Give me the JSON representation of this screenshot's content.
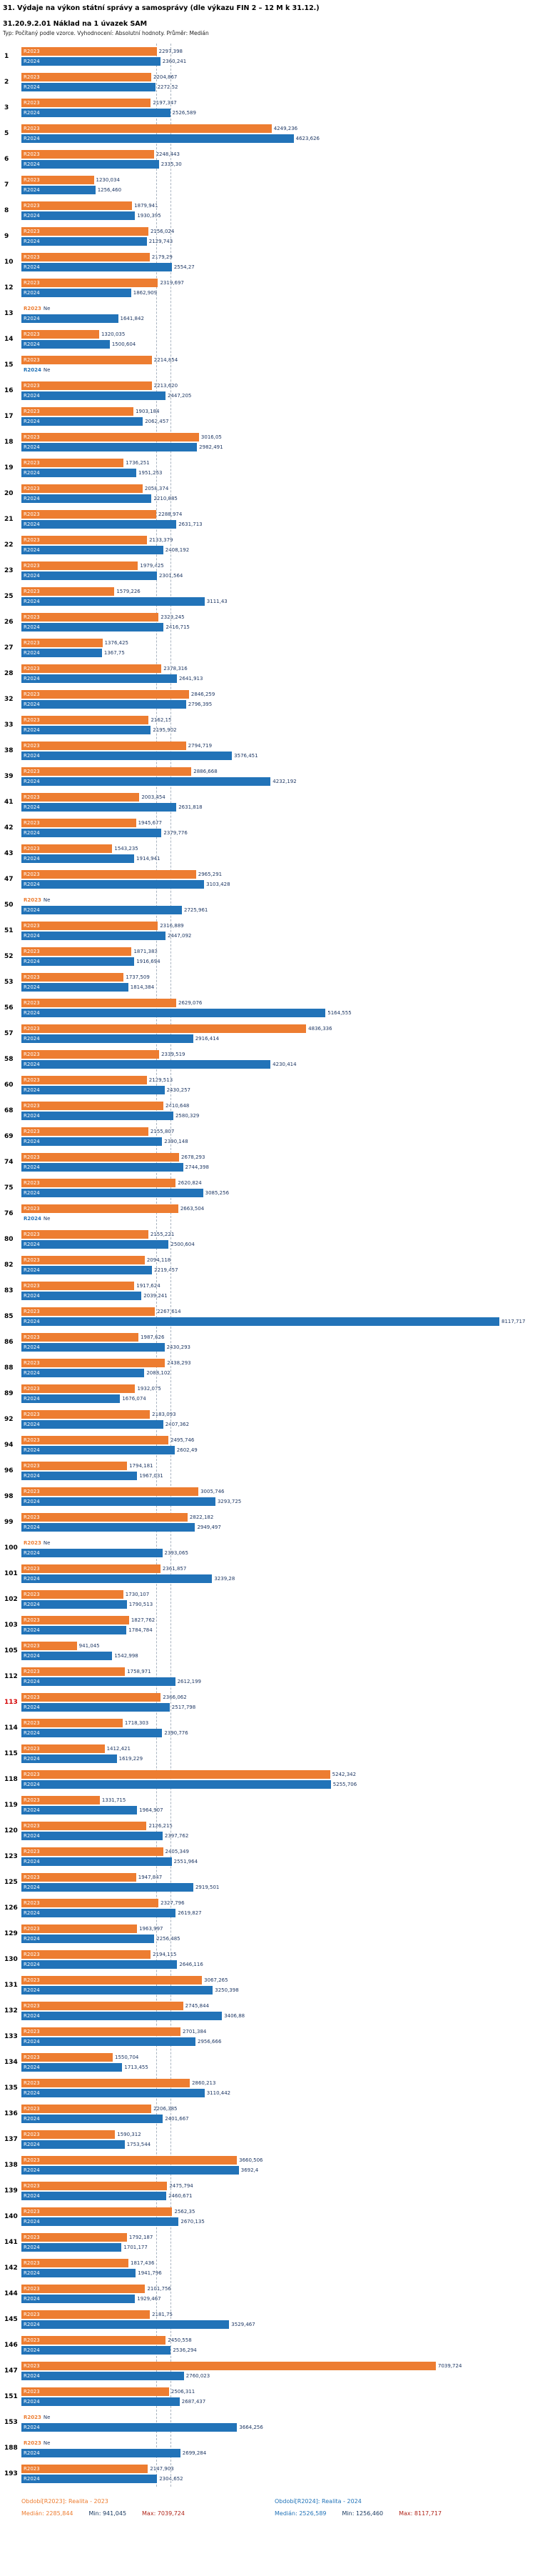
{
  "chart_data": {
    "type": "bar",
    "orientation": "horizontal",
    "title": "31. Výdaje na výkon státní správy a samosprávy (dle výkazu FIN 2 – 12 M k 31.12.)",
    "subtitle": "31.20.9.2.01 Náklad na 1 úvazek SAM",
    "meta": "Typ: Počítaný podle vzorce. Vyhodnocení: Absolutní hodnoty. Průměr: Medián",
    "series_names": [
      "R2023",
      "R2024"
    ],
    "colors": {
      "R2023": "#ed7d31",
      "R2024": "#2273b8"
    },
    "value_label_color": "#1f3864",
    "xmax": 8117.717,
    "grid": false,
    "legend_position": "bottom",
    "no_data_label": "Ne",
    "medians": {
      "R2023": 2285.844,
      "R2024": 2526.589
    },
    "highlighted_rows": [
      "113"
    ],
    "rows": [
      [
        "1",
        "2297,398",
        "2360,241"
      ],
      [
        "2",
        "2204,867",
        "2272,52"
      ],
      [
        "3",
        "2197,347",
        "2526,589"
      ],
      [
        "5",
        "4249,236",
        "4623,626"
      ],
      [
        "6",
        "2248,443",
        "2335,30"
      ],
      [
        "7",
        "1230,034",
        "1256,460"
      ],
      [
        "8",
        "1879,941",
        "1930,395"
      ],
      [
        "9",
        "2156,024",
        "2129,743"
      ],
      [
        "10",
        "2179,29",
        "2554,27"
      ],
      [
        "12",
        "2319,697",
        "1862,909"
      ],
      [
        "13",
        null,
        "1641,842"
      ],
      [
        "14",
        "1320,035",
        "1500,604"
      ],
      [
        "15",
        "2214,854",
        null
      ],
      [
        "16",
        "2213,620",
        "2447,205"
      ],
      [
        "17",
        "1903,184",
        "2062,457"
      ],
      [
        "18",
        "3016,05",
        "2982,491"
      ],
      [
        "19",
        "1736,251",
        "1951,263"
      ],
      [
        "20",
        "2058,374",
        "2210,885"
      ],
      [
        "21",
        "2288,974",
        "2631,713"
      ],
      [
        "22",
        "2133,379",
        "2408,192"
      ],
      [
        "23",
        "1979,425",
        "2301,564"
      ],
      [
        "25",
        "1579,226",
        "3111,43"
      ],
      [
        "26",
        "2329,245",
        "2416,715"
      ],
      [
        "27",
        "1376,425",
        "1367,75"
      ],
      [
        "28",
        "2378,316",
        "2641,913"
      ],
      [
        "32",
        "2846,259",
        "2796,395"
      ],
      [
        "33",
        "2162,15",
        "2195,902"
      ],
      [
        "38",
        "2794,719",
        "3576,451"
      ],
      [
        "39",
        "2886,668",
        "4232,192"
      ],
      [
        "41",
        "2003,454",
        "2631,818"
      ],
      [
        "42",
        "1945,677",
        "2379,776"
      ],
      [
        "43",
        "1543,235",
        "1914,941"
      ],
      [
        "47",
        "2965,291",
        "3103,428"
      ],
      [
        "50",
        null,
        "2725,961"
      ],
      [
        "51",
        "2316,889",
        "2447,092"
      ],
      [
        "52",
        "1871,383",
        "1916,694"
      ],
      [
        "53",
        "1737,509",
        "1814,384"
      ],
      [
        "56",
        "2629,076",
        "5164,555"
      ],
      [
        "57",
        "4836,336",
        "2916,414"
      ],
      [
        "58",
        "2339,519",
        "4230,414"
      ],
      [
        "60",
        "2129,513",
        "2430,257"
      ],
      [
        "68",
        "2410,648",
        "2580,329"
      ],
      [
        "69",
        "2155,807",
        "2390,148"
      ],
      [
        "74",
        "2678,293",
        "2744,398"
      ],
      [
        "75",
        "2620,824",
        "3085,256"
      ],
      [
        "76",
        "2663,504",
        null
      ],
      [
        "80",
        "2155,221",
        "2500,604"
      ],
      [
        "82",
        "2094,118",
        "2219,457"
      ],
      [
        "83",
        "1917,624",
        "2039,241"
      ],
      [
        "85",
        "2267,614",
        "8117,717"
      ],
      [
        "86",
        "1987,626",
        "2430,293"
      ],
      [
        "88",
        "2438,293",
        "2088,102"
      ],
      [
        "89",
        "1932,075",
        "1676,074"
      ],
      [
        "92",
        "2183,093",
        "2407,362"
      ],
      [
        "94",
        "2495,746",
        "2602,49"
      ],
      [
        "96",
        "1794,181",
        "1967,031"
      ],
      [
        "98",
        "3005,746",
        "3293,725"
      ],
      [
        "99",
        "2822,182",
        "2949,497"
      ],
      [
        "100",
        null,
        "2393,065"
      ],
      [
        "101",
        "2361,857",
        "3239,28"
      ],
      [
        "102",
        "1730,107",
        "1790,513"
      ],
      [
        "103",
        "1827,762",
        "1784,784"
      ],
      [
        "105",
        "941,045",
        "1542,998"
      ],
      [
        "112",
        "1758,971",
        "2612,199"
      ],
      [
        "113",
        "2366,062",
        "2517,798"
      ],
      [
        "114",
        "1718,303",
        "2390,776"
      ],
      [
        "115",
        "1412,421",
        "1619,229"
      ],
      [
        "118",
        "5242,342",
        "5255,706"
      ],
      [
        "119",
        "1331,715",
        "1964,907"
      ],
      [
        "120",
        "2126,215",
        "2397,762"
      ],
      [
        "123",
        "2405,349",
        "2551,964"
      ],
      [
        "125",
        "1947,847",
        "2919,501"
      ],
      [
        "126",
        "2327,796",
        "2619,827"
      ],
      [
        "129",
        "1963,997",
        "2256,485"
      ],
      [
        "130",
        "2194,115",
        "2646,116"
      ],
      [
        "131",
        "3067,265",
        "3250,398"
      ],
      [
        "132",
        "2745,844",
        "3406,88"
      ],
      [
        "133",
        "2701,384",
        "2956,666"
      ],
      [
        "134",
        "1550,704",
        "1713,455"
      ],
      [
        "135",
        "2860,213",
        "3110,442"
      ],
      [
        "136",
        "2206,385",
        "2401,667"
      ],
      [
        "137",
        "1590,312",
        "1753,544"
      ],
      [
        "138",
        "3660,506",
        "3692,4"
      ],
      [
        "139",
        "2475,794",
        "2460,671"
      ],
      [
        "140",
        "2562,35",
        "2670,135"
      ],
      [
        "141",
        "1792,187",
        "1701,177"
      ],
      [
        "142",
        "1817,436",
        "1941,796"
      ],
      [
        "144",
        "2101,756",
        "1929,467"
      ],
      [
        "145",
        "2181,75",
        "3529,467"
      ],
      [
        "146",
        "2450,558",
        "2536,294"
      ],
      [
        "147",
        "7039,724",
        "2760,023"
      ],
      [
        "151",
        "2506,311",
        "2687,437"
      ],
      [
        "153",
        null,
        "3664,256"
      ],
      [
        "188",
        null,
        "2699,284"
      ],
      [
        "193",
        "2147,903",
        "2304,652"
      ]
    ]
  },
  "legend": {
    "r2023": {
      "series": "Období[R2023]: Realita - 2023",
      "median": "Medián: 2285,844",
      "min": "Min: 941,045",
      "max": "Max: 7039,724"
    },
    "r2024": {
      "series": "Období[R2024]: Realita - 2024",
      "median": "Medián: 2526,589",
      "min": "Min: 1256,460",
      "max": "Max: 8117,717"
    }
  }
}
